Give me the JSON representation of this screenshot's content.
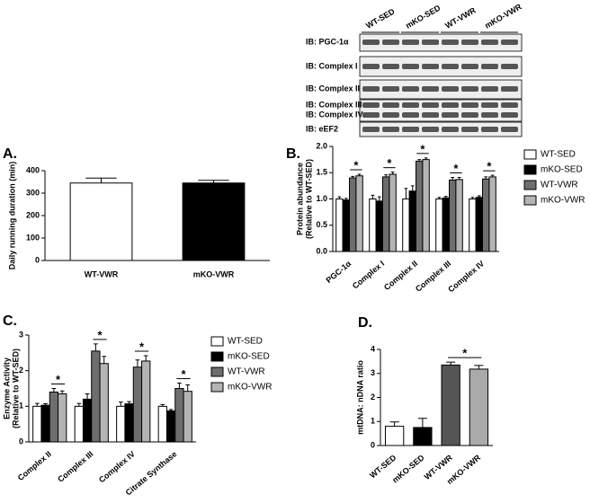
{
  "blot": {
    "columns": [
      "WT-SED",
      "mKO-SED",
      "WT-VWR",
      "mKO-VWR"
    ],
    "rows": [
      "IB: PGC-1α",
      "IB: Complex I",
      "IB: Complex II",
      "IB: Complex III",
      "IB: Complex IV",
      "IB: eEF2"
    ]
  },
  "chart_data": [
    {
      "type": "bar",
      "label": "A.",
      "ylabel": [
        "Daily running duration (min)"
      ],
      "categories": [
        "WT-VWR",
        "mKO-VWR"
      ],
      "values": [
        345,
        345
      ],
      "errors": [
        22,
        12
      ],
      "colors": [
        "#ffffff",
        "#000000"
      ],
      "ylim": [
        0,
        400
      ],
      "yticks": [
        0,
        100,
        200,
        300,
        400
      ]
    },
    {
      "type": "bar",
      "label": "B.",
      "ylabel": [
        "Protein abundance",
        "(Relative to WT-SED)"
      ],
      "categories": [
        "PGC-1α",
        "Complex I",
        "Complex II",
        "Complex III",
        "Complex IV"
      ],
      "series": [
        {
          "name": "WT-SED",
          "color": "#ffffff",
          "values": [
            1.0,
            1.0,
            1.0,
            1.0,
            1.0
          ],
          "errors": [
            0.04,
            0.07,
            0.2,
            0.03,
            0.03
          ]
        },
        {
          "name": "mKO-SED",
          "color": "#000000",
          "values": [
            0.98,
            0.96,
            1.15,
            1.02,
            1.03
          ],
          "errors": [
            0.03,
            0.08,
            0.1,
            0.03,
            0.03
          ]
        },
        {
          "name": "WT-VWR",
          "color": "#6e6e6e",
          "values": [
            1.4,
            1.42,
            1.72,
            1.36,
            1.38
          ],
          "errors": [
            0.03,
            0.04,
            0.03,
            0.05,
            0.04
          ]
        },
        {
          "name": "mKO-VWR",
          "color": "#b4b4b4",
          "values": [
            1.44,
            1.47,
            1.75,
            1.37,
            1.42
          ],
          "errors": [
            0.03,
            0.04,
            0.03,
            0.04,
            0.03
          ]
        }
      ],
      "ylim": [
        0,
        2
      ],
      "yticks": [
        {
          "value": 0,
          "label": "0.0"
        },
        {
          "value": 0.5,
          "label": "0.5"
        },
        {
          "value": 1,
          "label": "1.0"
        },
        {
          "value": 1.5,
          "label": "1.5"
        },
        {
          "value": 2,
          "label": "2.0"
        }
      ],
      "stars": [
        "*",
        "*",
        "*",
        "*",
        "*"
      ],
      "legend": "right"
    },
    {
      "type": "bar",
      "label": "C.",
      "ylabel": [
        "Enzyme Activity",
        "(Relative to WT-SED)"
      ],
      "categories": [
        "Complex II",
        "Complex III",
        "Complex IV",
        "Citrate Synthase"
      ],
      "series": [
        {
          "name": "WT-SED",
          "color": "#ffffff",
          "values": [
            1.0,
            1.0,
            1.0,
            1.0
          ],
          "errors": [
            0.08,
            0.08,
            0.12,
            0.05
          ]
        },
        {
          "name": "mKO-SED",
          "color": "#000000",
          "values": [
            1.03,
            1.2,
            1.07,
            0.87
          ],
          "errors": [
            0.04,
            0.15,
            0.06,
            0.04
          ]
        },
        {
          "name": "WT-VWR",
          "color": "#6e6e6e",
          "values": [
            1.4,
            2.55,
            2.1,
            1.5
          ],
          "errors": [
            0.1,
            0.2,
            0.2,
            0.15
          ]
        },
        {
          "name": "mKO-VWR",
          "color": "#b4b4b4",
          "values": [
            1.35,
            2.2,
            2.27,
            1.42
          ],
          "errors": [
            0.08,
            0.2,
            0.15,
            0.18
          ]
        }
      ],
      "ylim": [
        0,
        3
      ],
      "yticks": [
        0,
        1,
        2,
        3
      ],
      "stars": [
        "*",
        "*",
        "*",
        "*"
      ],
      "legend": "right"
    },
    {
      "type": "bar",
      "label": "D.",
      "ylabel": [
        "mtDNA: nDNA ratio"
      ],
      "categories": [
        "WT-SED",
        "mKO-SED",
        "WT-VWR",
        "mKO-VWR"
      ],
      "values": [
        0.8,
        0.75,
        3.35,
        3.18
      ],
      "errors": [
        0.18,
        0.38,
        0.12,
        0.15
      ],
      "colors": [
        "#ffffff",
        "#000000",
        "#555555",
        "#aaaaaa"
      ],
      "ylim": [
        0,
        4
      ],
      "yticks": [
        0,
        1,
        2,
        3,
        4
      ],
      "stars": [
        "*"
      ]
    }
  ]
}
